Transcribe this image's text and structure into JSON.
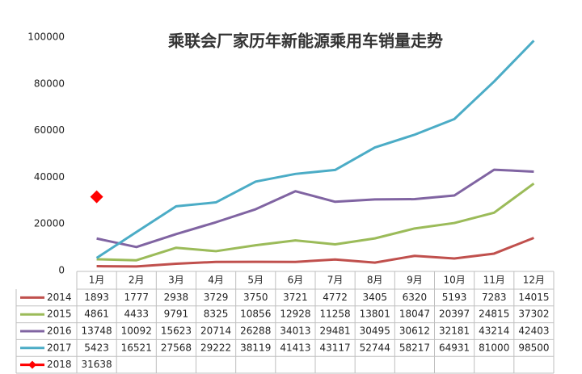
{
  "chart_data": {
    "type": "line",
    "title": "乘联会厂家历年新能源乘用车销量走势",
    "categories": [
      "1月",
      "2月",
      "3月",
      "4月",
      "5月",
      "6月",
      "7月",
      "8月",
      "9月",
      "10月",
      "11月",
      "12月"
    ],
    "ylim": [
      0,
      100000
    ],
    "yticks": [
      0,
      20000,
      40000,
      60000,
      80000,
      100000
    ],
    "series": [
      {
        "name": "2014",
        "color": "#c0504d",
        "values": [
          1893,
          1777,
          2938,
          3729,
          3750,
          3721,
          4772,
          3405,
          6320,
          5193,
          7283,
          14015
        ]
      },
      {
        "name": "2015",
        "color": "#9bbb59",
        "values": [
          4861,
          4433,
          9791,
          8325,
          10856,
          12928,
          11258,
          13801,
          18047,
          20397,
          24815,
          37302
        ]
      },
      {
        "name": "2016",
        "color": "#8064a2",
        "values": [
          13748,
          10092,
          15623,
          20714,
          26288,
          34013,
          29481,
          30495,
          30612,
          32181,
          43214,
          42403
        ]
      },
      {
        "name": "2017",
        "color": "#4bacc6",
        "values": [
          5423,
          16521,
          27568,
          29222,
          38119,
          41413,
          43117,
          52744,
          58217,
          64931,
          81000,
          98500
        ]
      },
      {
        "name": "2018",
        "color": "#ff0000",
        "marker": "diamond",
        "values": [
          31638,
          null,
          null,
          null,
          null,
          null,
          null,
          null,
          null,
          null,
          null,
          null
        ]
      }
    ]
  }
}
